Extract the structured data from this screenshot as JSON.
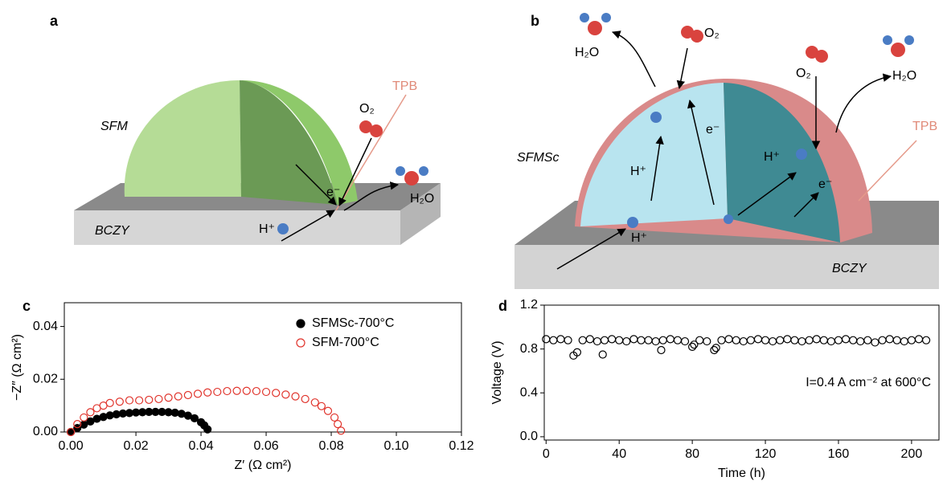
{
  "diagrams": [
    {
      "panel": "a",
      "texts": [
        "SFM",
        "BCZY",
        "TPB",
        "O₂",
        "e⁻",
        "H₂O",
        "H⁺"
      ]
    },
    {
      "panel": "b",
      "texts": [
        "H₂O",
        "O₂",
        "O₂",
        "H₂O",
        "e⁻",
        "H⁺",
        "H⁺",
        "e⁻",
        "SFMSc",
        "H⁺",
        "TPB",
        "BCZY"
      ]
    }
  ],
  "chart_data": [
    {
      "panel": "c",
      "type": "scatter",
      "xlabel": "Z′ (Ω cm²)",
      "ylabel": "−Z″ (Ω cm²)",
      "legend": "upper right",
      "xlim": [
        -0.002,
        0.12
      ],
      "ylim": [
        0,
        0.049
      ],
      "xticks": [
        {
          "value": 0,
          "label": "0.00"
        },
        {
          "value": 0.02,
          "label": "0.02"
        },
        {
          "value": 0.04,
          "label": "0.04"
        },
        {
          "value": 0.06,
          "label": "0.06"
        },
        {
          "value": 0.08,
          "label": "0.08"
        },
        {
          "value": 0.1,
          "label": "0.10"
        },
        {
          "value": 0.12,
          "label": "0.12"
        }
      ],
      "yticks": [
        {
          "value": 0,
          "label": "0.00"
        },
        {
          "value": 0.02,
          "label": "0.02"
        },
        {
          "value": 0.04,
          "label": "0.04"
        }
      ],
      "series": [
        {
          "name": "SFMSc-700°C",
          "color": "#000000",
          "marker": "filled",
          "x": [
            0.0,
            0.002,
            0.004,
            0.006,
            0.008,
            0.01,
            0.012,
            0.014,
            0.016,
            0.018,
            0.02,
            0.022,
            0.024,
            0.026,
            0.028,
            0.03,
            0.032,
            0.034,
            0.036,
            0.038,
            0.04,
            0.041,
            0.042
          ],
          "values": [
            0.0,
            0.0015,
            0.0028,
            0.004,
            0.005,
            0.0057,
            0.0063,
            0.0067,
            0.007,
            0.0072,
            0.0074,
            0.0075,
            0.0076,
            0.0076,
            0.0076,
            0.0075,
            0.0073,
            0.0069,
            0.0062,
            0.0052,
            0.0037,
            0.0025,
            0.001
          ]
        },
        {
          "name": "SFM-700°C",
          "color": "#e0332b",
          "marker": "hollow",
          "x": [
            0.0,
            0.002,
            0.004,
            0.006,
            0.008,
            0.01,
            0.012,
            0.015,
            0.018,
            0.021,
            0.024,
            0.027,
            0.03,
            0.033,
            0.036,
            0.039,
            0.042,
            0.045,
            0.048,
            0.051,
            0.054,
            0.057,
            0.06,
            0.063,
            0.066,
            0.069,
            0.072,
            0.075,
            0.077,
            0.079,
            0.081,
            0.082,
            0.083
          ],
          "values": [
            0.0,
            0.003,
            0.0055,
            0.0075,
            0.009,
            0.01,
            0.011,
            0.0115,
            0.012,
            0.012,
            0.0122,
            0.0125,
            0.013,
            0.0135,
            0.014,
            0.0145,
            0.015,
            0.0152,
            0.0155,
            0.0156,
            0.0156,
            0.0155,
            0.0152,
            0.0148,
            0.0142,
            0.0135,
            0.0125,
            0.0112,
            0.0098,
            0.008,
            0.0055,
            0.003,
            0.0005
          ]
        }
      ]
    },
    {
      "panel": "d",
      "type": "scatter",
      "xlabel": "Time (h)",
      "ylabel": "Voltage (V)",
      "annotation": "I=0.4 A cm⁻² at 600°C",
      "xlim": [
        -1,
        215
      ],
      "ylim": [
        -0.03,
        1.2
      ],
      "xticks": [
        0,
        40,
        80,
        120,
        160,
        200
      ],
      "yticks": [
        {
          "value": 0,
          "label": "0.0"
        },
        {
          "value": 0.4,
          "label": "0.4"
        },
        {
          "value": 0.8,
          "label": "0.8"
        },
        {
          "value": 1.2,
          "label": "1.2"
        }
      ],
      "series": [
        {
          "color": "#000000",
          "marker": "hollow",
          "x": [
            0,
            4,
            8,
            12,
            15,
            17,
            20,
            24,
            28,
            31,
            32,
            36,
            40,
            44,
            48,
            52,
            56,
            60,
            63,
            64,
            68,
            72,
            76,
            80,
            81,
            84,
            88,
            92,
            93,
            96,
            100,
            104,
            108,
            112,
            116,
            120,
            124,
            128,
            132,
            136,
            140,
            144,
            148,
            152,
            156,
            160,
            164,
            168,
            172,
            176,
            180,
            184,
            188,
            192,
            196,
            200,
            204,
            208
          ],
          "values": [
            0.89,
            0.88,
            0.89,
            0.88,
            0.74,
            0.77,
            0.88,
            0.89,
            0.87,
            0.75,
            0.88,
            0.89,
            0.88,
            0.87,
            0.89,
            0.88,
            0.88,
            0.87,
            0.79,
            0.88,
            0.89,
            0.88,
            0.87,
            0.82,
            0.84,
            0.88,
            0.87,
            0.79,
            0.81,
            0.88,
            0.89,
            0.88,
            0.87,
            0.88,
            0.89,
            0.88,
            0.87,
            0.88,
            0.89,
            0.88,
            0.87,
            0.88,
            0.89,
            0.88,
            0.87,
            0.88,
            0.89,
            0.88,
            0.87,
            0.88,
            0.86,
            0.88,
            0.89,
            0.88,
            0.87,
            0.88,
            0.89,
            0.88
          ]
        }
      ]
    }
  ]
}
